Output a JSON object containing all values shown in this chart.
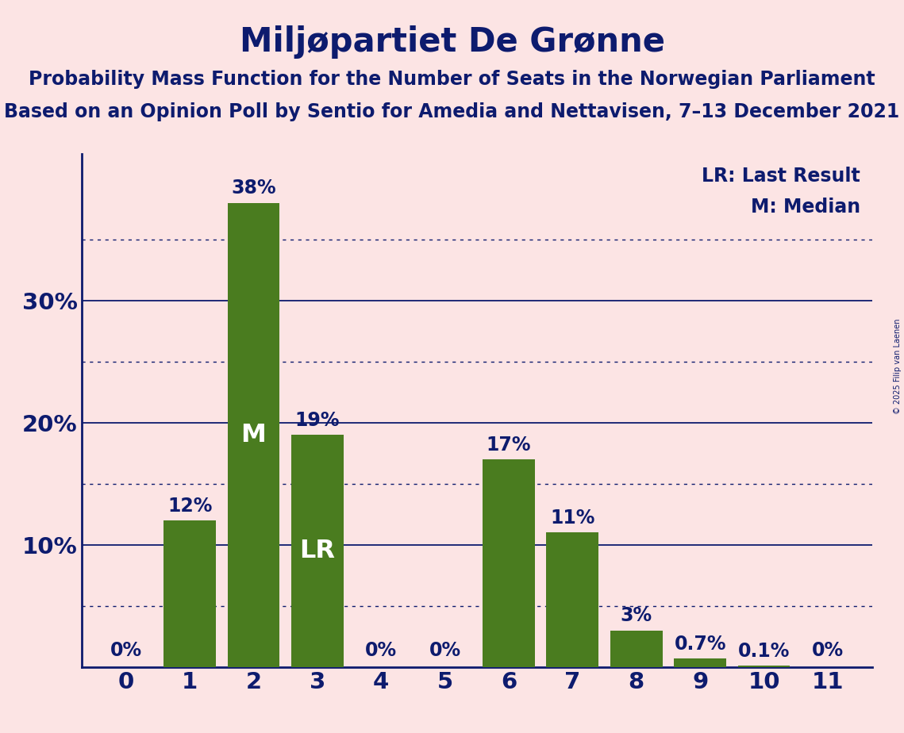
{
  "title": "Miljøpartiet De Grønne",
  "subtitle1": "Probability Mass Function for the Number of Seats in the Norwegian Parliament",
  "subtitle2": "Based on an Opinion Poll by Sentio for Amedia and Nettavisen, 7–13 December 2021",
  "copyright": "© 2025 Filip van Laenen",
  "categories": [
    0,
    1,
    2,
    3,
    4,
    5,
    6,
    7,
    8,
    9,
    10,
    11
  ],
  "values": [
    0.0,
    12.0,
    38.0,
    19.0,
    0.0,
    0.0,
    17.0,
    11.0,
    3.0,
    0.7,
    0.1,
    0.0
  ],
  "bar_color": "#4a7c1f",
  "background_color": "#fce4e4",
  "title_color": "#0d1b6e",
  "axis_color": "#0d1b6e",
  "grid_color": "#0d1b6e",
  "bar_label_color_outside": "#0d1b6e",
  "bar_label_color_inside": "#ffffff",
  "median_bar": 2,
  "lr_bar": 3,
  "ylim_max": 42,
  "legend_line1": "LR: Last Result",
  "legend_line2": "M: Median",
  "title_fontsize": 30,
  "subtitle_fontsize": 17,
  "bar_label_fontsize": 17,
  "legend_fontsize": 17,
  "tick_fontsize": 21,
  "inside_label_fontsize": 23
}
